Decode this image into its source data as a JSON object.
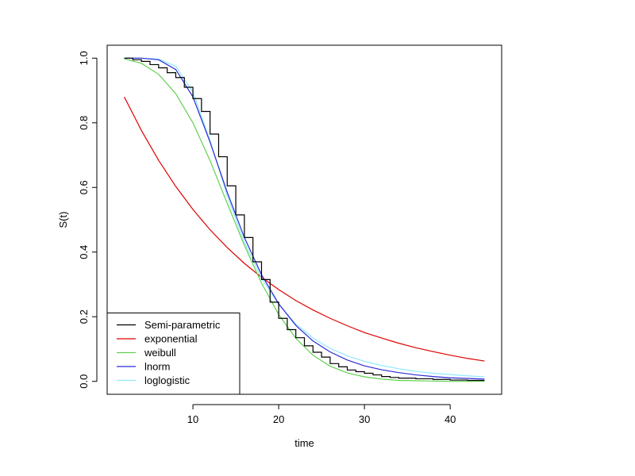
{
  "chart_data": {
    "type": "line",
    "title": "",
    "xlabel": "time",
    "ylabel": "S(t)",
    "xlim": [
      0,
      46
    ],
    "ylim": [
      -0.04,
      1.04
    ],
    "xticks": [
      10,
      20,
      30,
      40
    ],
    "xtick_labels": [
      "10",
      "20",
      "30",
      "40"
    ],
    "yticks": [
      0.0,
      0.2,
      0.4,
      0.6,
      0.8,
      1.0
    ],
    "ytick_labels": [
      "0.0",
      "0.2",
      "0.4",
      "0.6",
      "0.8",
      "1.0"
    ],
    "legend_position": "bottom-left",
    "series": [
      {
        "name": "Semi-parametric",
        "color": "#000000",
        "style": "step",
        "x": [
          2,
          3,
          4,
          5,
          6,
          7,
          8,
          9,
          10,
          11,
          12,
          13,
          14,
          15,
          16,
          17,
          18,
          19,
          20,
          21,
          22,
          23,
          24,
          25,
          26,
          27,
          28,
          29,
          30,
          31,
          32,
          33,
          34,
          36,
          38,
          40,
          42,
          44
        ],
        "y": [
          1.0,
          0.995,
          0.99,
          0.98,
          0.97,
          0.955,
          0.94,
          0.91,
          0.875,
          0.835,
          0.765,
          0.695,
          0.605,
          0.515,
          0.445,
          0.37,
          0.315,
          0.245,
          0.195,
          0.16,
          0.135,
          0.11,
          0.09,
          0.075,
          0.055,
          0.045,
          0.035,
          0.03,
          0.025,
          0.02,
          0.015,
          0.012,
          0.01,
          0.008,
          0.006,
          0.004,
          0.003,
          0.003
        ]
      },
      {
        "name": "exponential",
        "color": "#df0000",
        "style": "line",
        "x": [
          2,
          4,
          6,
          8,
          10,
          12,
          14,
          16,
          18,
          20,
          22,
          24,
          26,
          28,
          30,
          32,
          34,
          36,
          38,
          40,
          42,
          44
        ],
        "y": [
          0.88,
          0.776,
          0.684,
          0.603,
          0.532,
          0.469,
          0.414,
          0.365,
          0.322,
          0.284,
          0.25,
          0.221,
          0.195,
          0.172,
          0.151,
          0.134,
          0.118,
          0.104,
          0.092,
          0.081,
          0.071,
          0.063
        ]
      },
      {
        "name": "weibull",
        "color": "#61d04f",
        "style": "line",
        "x": [
          2,
          4,
          6,
          8,
          10,
          12,
          14,
          16,
          18,
          20,
          22,
          24,
          26,
          28,
          30,
          32,
          34,
          36,
          38,
          40,
          42,
          44
        ],
        "y": [
          0.998,
          0.984,
          0.95,
          0.89,
          0.8,
          0.683,
          0.551,
          0.421,
          0.304,
          0.207,
          0.133,
          0.081,
          0.047,
          0.026,
          0.014,
          0.007,
          0.003,
          0.002,
          0.001,
          0.0,
          0.0,
          0.0
        ]
      },
      {
        "name": "lnorm",
        "color": "#2d2bd6",
        "style": "line",
        "x": [
          2,
          4,
          6,
          8,
          10,
          12,
          14,
          16,
          18,
          20,
          22,
          24,
          26,
          28,
          30,
          32,
          34,
          36,
          38,
          40,
          42,
          44
        ],
        "y": [
          1.0,
          1.0,
          0.995,
          0.965,
          0.88,
          0.74,
          0.585,
          0.445,
          0.33,
          0.24,
          0.173,
          0.125,
          0.091,
          0.066,
          0.048,
          0.036,
          0.027,
          0.02,
          0.015,
          0.011,
          0.009,
          0.007
        ]
      },
      {
        "name": "loglogistic",
        "color": "#8fe9ff",
        "style": "line",
        "x": [
          2,
          4,
          6,
          8,
          10,
          12,
          14,
          16,
          18,
          20,
          22,
          24,
          26,
          28,
          30,
          32,
          34,
          36,
          38,
          40,
          42,
          44
        ],
        "y": [
          1.0,
          1.0,
          0.997,
          0.975,
          0.895,
          0.745,
          0.575,
          0.43,
          0.32,
          0.238,
          0.178,
          0.134,
          0.102,
          0.079,
          0.062,
          0.049,
          0.039,
          0.031,
          0.025,
          0.021,
          0.017,
          0.014
        ]
      }
    ]
  }
}
